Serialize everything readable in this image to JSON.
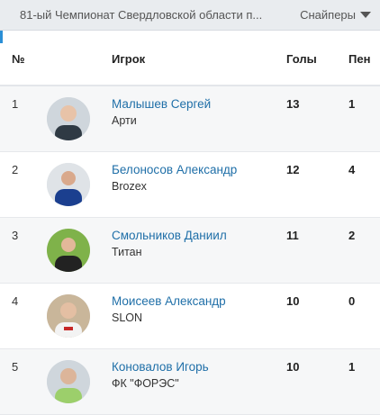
{
  "top": {
    "tournament": "81-ый Чемпионат Свердловской области п...",
    "selector_label": "Снайперы"
  },
  "table": {
    "headers": {
      "num": "№",
      "player": "Игрок",
      "goals": "Голы",
      "pen": "Пен"
    },
    "rows": [
      {
        "num": "1",
        "name": "Малышев Сергей",
        "team": "Арти",
        "goals": "13",
        "pen": "1"
      },
      {
        "num": "2",
        "name": "Белоносов Александр",
        "team": "Brozex",
        "goals": "12",
        "pen": "4"
      },
      {
        "num": "3",
        "name": "Смольников Даниил",
        "team": "Титан",
        "goals": "11",
        "pen": "2"
      },
      {
        "num": "4",
        "name": "Моисеев Александр",
        "team": "SLON",
        "goals": "10",
        "pen": "0"
      },
      {
        "num": "5",
        "name": "Коновалов Игорь",
        "team": "ФК \"ФОРЭС\"",
        "goals": "10",
        "pen": "1"
      }
    ]
  },
  "colors": {
    "link": "#1f6fa8",
    "accent": "#2b8fd6"
  }
}
